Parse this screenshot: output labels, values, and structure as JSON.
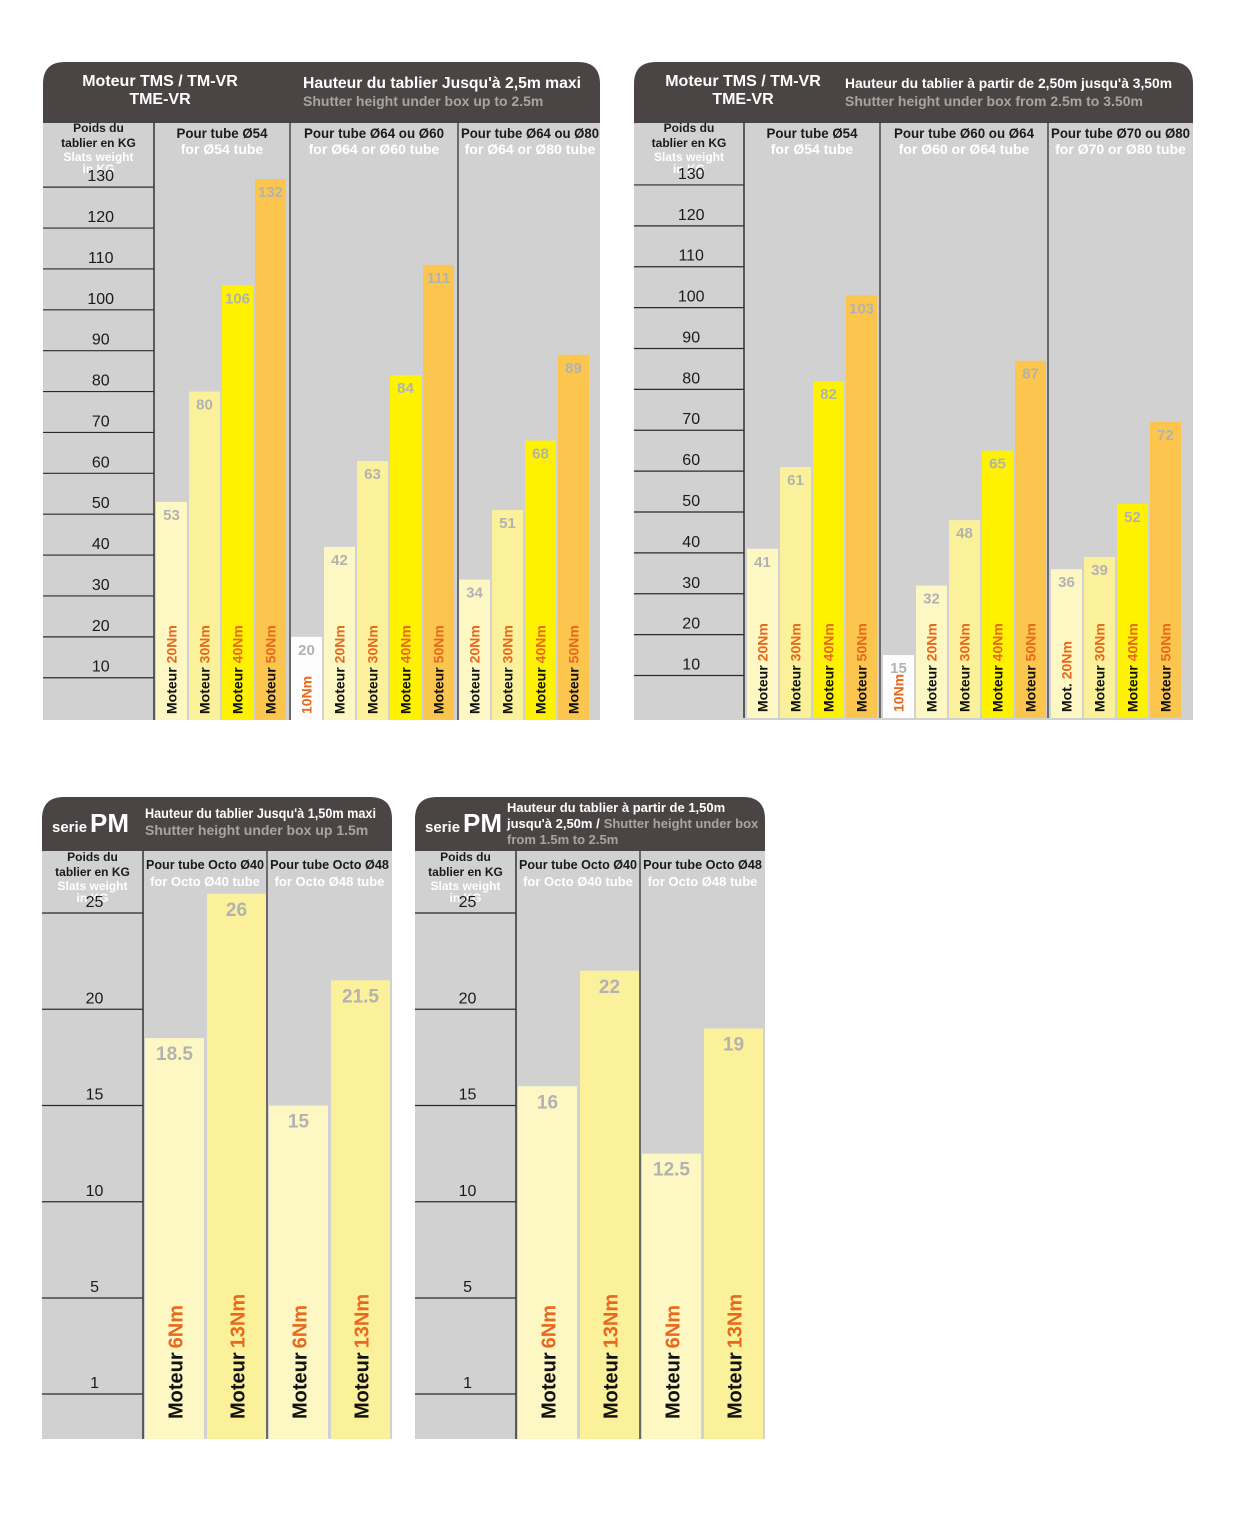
{
  "colors": {
    "header_bg": "#4a4544",
    "header_text": "#ffffff",
    "header_subtext": "#a7a5a4",
    "panel_bg": "#d1d1d1",
    "axis_text": "#1a1a1a",
    "value_text": "#b2b2b2",
    "label_black": "#111111",
    "label_orange": "#e8681d",
    "bar_10": "#fdfdfd",
    "bar_20": "#fdf7c4",
    "bar_30": "#fbf19a",
    "bar_40": "#fff200",
    "bar_50": "#fcc54e",
    "bar_pm6": "#fdf7c4",
    "bar_pm13": "#fbf19a"
  },
  "chart_data": [
    {
      "type": "bar",
      "title": [
        "Moteur TMS / TM-VR",
        "TME-VR"
      ],
      "subtitle": "Hauteur du tablier Jusqu'à 2,5m maxi",
      "subtitle_en": "Shutter height under box up to 2.5m",
      "ylabel": [
        "Poids du",
        "tablier en KG"
      ],
      "ylabel_en": [
        "Slats weight",
        "in KG"
      ],
      "yticks": [
        10,
        20,
        30,
        40,
        50,
        60,
        70,
        80,
        90,
        100,
        110,
        120,
        130
      ],
      "ylim": [
        0,
        130
      ],
      "groups": [
        {
          "label": "Pour tube Ø54",
          "label_en": "for Ø54 tube",
          "bars": [
            {
              "value": 53,
              "prefix": "Moteur",
              "motor": "20Nm",
              "tone": "bar_20"
            },
            {
              "value": 80,
              "prefix": "Moteur",
              "motor": "30Nm",
              "tone": "bar_30"
            },
            {
              "value": 106,
              "prefix": "Moteur",
              "motor": "40Nm",
              "tone": "bar_40"
            },
            {
              "value": 132,
              "prefix": "Moteur",
              "motor": "50Nm",
              "tone": "bar_50"
            }
          ]
        },
        {
          "label": "Pour tube Ø64 ou Ø60",
          "label_en": "for Ø64 or Ø60 tube",
          "bars": [
            {
              "value": 20,
              "prefix": "",
              "motor": "10Nm",
              "tone": "bar_10"
            },
            {
              "value": 42,
              "prefix": "Moteur",
              "motor": "20Nm",
              "tone": "bar_20"
            },
            {
              "value": 63,
              "prefix": "Moteur",
              "motor": "30Nm",
              "tone": "bar_30"
            },
            {
              "value": 84,
              "prefix": "Moteur",
              "motor": "40Nm",
              "tone": "bar_40"
            },
            {
              "value": 111,
              "prefix": "Moteur",
              "motor": "50Nm",
              "tone": "bar_50"
            }
          ]
        },
        {
          "label": "Pour tube Ø64 ou Ø80",
          "label_en": "for Ø64 or Ø80 tube",
          "bars": [
            {
              "value": 34,
              "prefix": "Moteur",
              "motor": "20Nm",
              "tone": "bar_20"
            },
            {
              "value": 51,
              "prefix": "Moteur",
              "motor": "30Nm",
              "tone": "bar_30"
            },
            {
              "value": 68,
              "prefix": "Moteur",
              "motor": "40Nm",
              "tone": "bar_40"
            },
            {
              "value": 89,
              "prefix": "Moteur",
              "motor": "50Nm",
              "tone": "bar_50"
            }
          ]
        }
      ]
    },
    {
      "type": "bar",
      "title": [
        "Moteur TMS / TM-VR",
        "TME-VR"
      ],
      "subtitle": "Hauteur du tablier à partir de 2,50m jusqu'à 3,50m",
      "subtitle_en": "Shutter height under box from 2.5m to 3.50m",
      "ylabel": [
        "Poids du",
        "tablier en KG"
      ],
      "ylabel_en": [
        "Slats weight",
        "in KG"
      ],
      "yticks": [
        10,
        20,
        30,
        40,
        50,
        60,
        70,
        80,
        90,
        100,
        110,
        120,
        130
      ],
      "ylim": [
        0,
        130
      ],
      "groups": [
        {
          "label": "Pour tube Ø54",
          "label_en": "for Ø54 tube",
          "bars": [
            {
              "value": 41,
              "prefix": "Moteur",
              "motor": "20Nm",
              "tone": "bar_20"
            },
            {
              "value": 61,
              "prefix": "Moteur",
              "motor": "30Nm",
              "tone": "bar_30"
            },
            {
              "value": 82,
              "prefix": "Moteur",
              "motor": "40Nm",
              "tone": "bar_40"
            },
            {
              "value": 103,
              "prefix": "Moteur",
              "motor": "50Nm",
              "tone": "bar_50"
            }
          ]
        },
        {
          "label": "Pour tube Ø60 ou Ø64",
          "label_en": "for Ø60 or Ø64 tube",
          "bars": [
            {
              "value": 15,
              "prefix": "",
              "motor": "10Nm",
              "tone": "bar_10"
            },
            {
              "value": 32,
              "prefix": "Moteur",
              "motor": "20Nm",
              "tone": "bar_20"
            },
            {
              "value": 48,
              "prefix": "Moteur",
              "motor": "30Nm",
              "tone": "bar_30"
            },
            {
              "value": 65,
              "prefix": "Moteur",
              "motor": "40Nm",
              "tone": "bar_40"
            },
            {
              "value": 87,
              "prefix": "Moteur",
              "motor": "50Nm",
              "tone": "bar_50"
            }
          ]
        },
        {
          "label": "Pour tube Ø70 ou Ø80",
          "label_en": "for Ø70 or Ø80 tube",
          "bars": [
            {
              "value": 36,
              "prefix": "Mot.",
              "motor": "20Nm",
              "tone": "bar_20"
            },
            {
              "value": 39,
              "prefix": "Moteur",
              "motor": "30Nm",
              "tone": "bar_30"
            },
            {
              "value": 52,
              "prefix": "Moteur",
              "motor": "40Nm",
              "tone": "bar_40"
            },
            {
              "value": 72,
              "prefix": "Moteur",
              "motor": "50Nm",
              "tone": "bar_50"
            }
          ]
        }
      ]
    },
    {
      "type": "bar",
      "series_prefix": "serie",
      "series_name": "PM",
      "subtitle": [
        "Hauteur du tablier Jusqu'à 1,50m maxi"
      ],
      "subtitle_en": [
        "Shutter height under box up 1.5m"
      ],
      "ylabel": [
        "Poids du",
        "tablier en KG"
      ],
      "ylabel_en": [
        "Slats weight",
        "in KG"
      ],
      "yticks": [
        1,
        5,
        10,
        15,
        20,
        25
      ],
      "ylim": [
        0,
        25
      ],
      "groups": [
        {
          "label": "Pour tube Octo Ø40",
          "label_en": "for Octo Ø40 tube",
          "bars": [
            {
              "value": 18.5,
              "value_label": "18.5",
              "prefix": "Moteur",
              "motor": "6Nm",
              "tone": "bar_pm6"
            },
            {
              "value": 26,
              "value_label": "26",
              "prefix": "Moteur",
              "motor": "13Nm",
              "tone": "bar_pm13"
            }
          ]
        },
        {
          "label": "Pour tube Octo Ø48",
          "label_en": "for Octo Ø48 tube",
          "bars": [
            {
              "value": 15,
              "value_label": "15",
              "prefix": "Moteur",
              "motor": "6Nm",
              "tone": "bar_pm6"
            },
            {
              "value": 21.5,
              "value_label": "21.5",
              "prefix": "Moteur",
              "motor": "13Nm",
              "tone": "bar_pm13"
            }
          ]
        }
      ]
    },
    {
      "type": "bar",
      "series_prefix": "serie",
      "series_name": "PM",
      "subtitle": [
        "Hauteur du tablier à partir de 1,50m",
        "jusqu'à 2,50m /"
      ],
      "subtitle_en": [
        "Shutter height under box",
        "from 1.5m to 2.5m"
      ],
      "ylabel": [
        "Poids du",
        "tablier en KG"
      ],
      "ylabel_en": [
        "Slats weight",
        "in KG"
      ],
      "yticks": [
        1,
        5,
        10,
        15,
        20,
        25
      ],
      "ylim": [
        0,
        25
      ],
      "groups": [
        {
          "label": "Pour tube Octo Ø40",
          "label_en": "for Octo Ø40 tube",
          "bars": [
            {
              "value": 16,
              "value_label": "16",
              "prefix": "Moteur",
              "motor": "6Nm",
              "tone": "bar_pm6"
            },
            {
              "value": 22,
              "value_label": "22",
              "prefix": "Moteur",
              "motor": "13Nm",
              "tone": "bar_pm13"
            }
          ]
        },
        {
          "label": "Pour tube Octo Ø48",
          "label_en": "for Octo Ø48 tube",
          "bars": [
            {
              "value": 12.5,
              "value_label": "12.5",
              "prefix": "Moteur",
              "motor": "6Nm",
              "tone": "bar_pm6"
            },
            {
              "value": 19,
              "value_label": "19",
              "prefix": "Moteur",
              "motor": "13Nm",
              "tone": "bar_pm13"
            }
          ]
        }
      ]
    }
  ]
}
